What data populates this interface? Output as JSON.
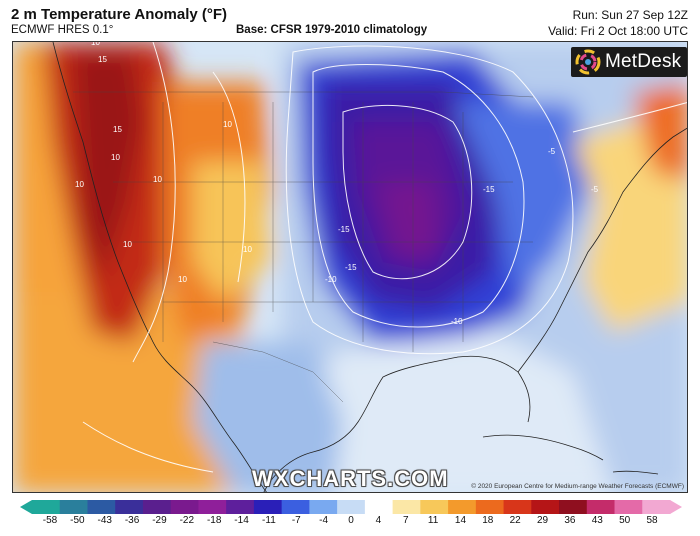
{
  "header": {
    "title": "2 m Temperature Anomaly (°F)",
    "model": "ECMWF HRES 0.1°",
    "base": "Base: CFSR 1979-2010 climatology",
    "run": "Run: Sun 27 Sep 12Z",
    "valid": "Valid: Fri 2 Oct 18:00 UTC"
  },
  "branding": {
    "metdesk": "MetDesk",
    "watermark": "WXCHARTS.COM",
    "credit": "© 2020 European Centre for Medium-range Weather Forecasts (ECMWF)"
  },
  "map": {
    "contour_labels": [
      "-15",
      "-15",
      "-15",
      "-10",
      "-10",
      "-5",
      "-5",
      "10",
      "10",
      "10",
      "15",
      "15",
      "10",
      "10",
      "10",
      "10",
      "10"
    ]
  },
  "colorbar": {
    "ticks": [
      "-58",
      "-50",
      "-43",
      "-36",
      "-29",
      "-22",
      "-18",
      "-14",
      "-11",
      "-7",
      "-4",
      "0",
      "4",
      "7",
      "11",
      "14",
      "18",
      "22",
      "29",
      "36",
      "43",
      "50",
      "58"
    ],
    "colors": [
      "#1fa89a",
      "#2a7f9c",
      "#2c5aa3",
      "#3a2f9a",
      "#5a1f8e",
      "#7a1a8e",
      "#8f1f9a",
      "#5e1f9c",
      "#2a1fb8",
      "#3b5fe0",
      "#79a9f0",
      "#c7dcf5",
      "#ffffff",
      "#fbe7a6",
      "#f7c85a",
      "#f39a2c",
      "#ec6a1e",
      "#d8361a",
      "#b51517",
      "#8f0f1f",
      "#c42c6a",
      "#e46aa8",
      "#f2a8d2"
    ]
  }
}
